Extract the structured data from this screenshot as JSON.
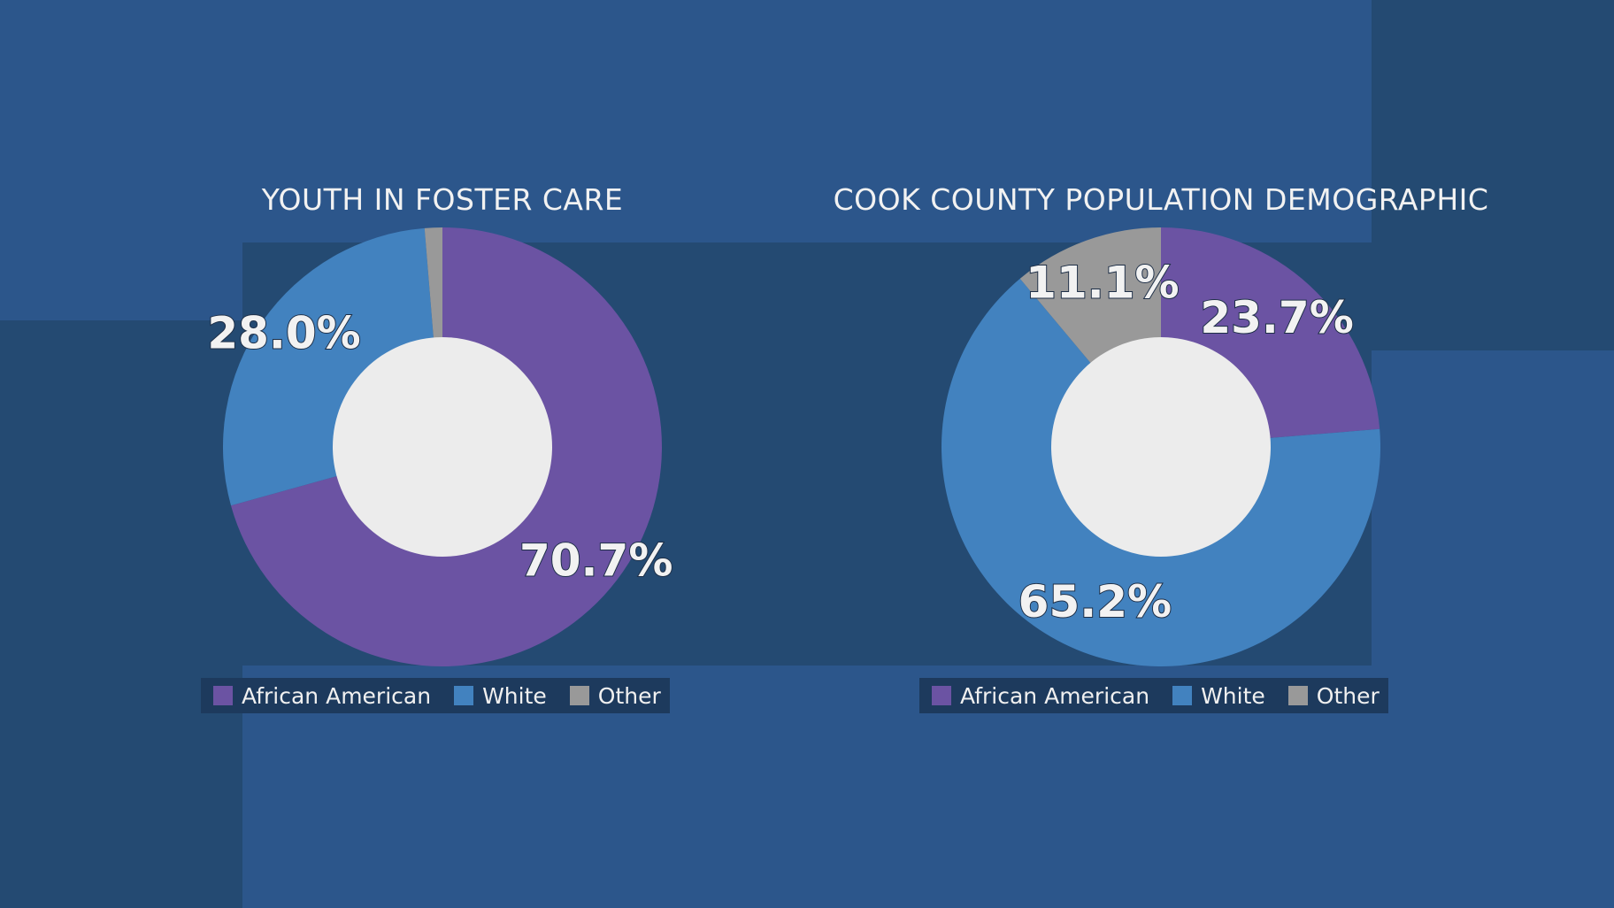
{
  "colors": {
    "african_american": "#6b53a3",
    "white": "#4282bf",
    "other": "#999999",
    "hole": "#ececec"
  },
  "legend": [
    "African American",
    "White",
    "Other"
  ],
  "chart_data": [
    {
      "type": "pie",
      "title": "YOUTH IN FOSTER CARE",
      "categories": [
        "African American",
        "White",
        "Other"
      ],
      "values": [
        70.7,
        28.0,
        1.3
      ],
      "labels": [
        "70.7%",
        "28.0%",
        ""
      ],
      "donut": true,
      "legend_position": "bottom"
    },
    {
      "type": "pie",
      "title": "COOK COUNTY POPULATION DEMOGRAPHIC",
      "categories": [
        "African American",
        "White",
        "Other"
      ],
      "values": [
        23.7,
        65.2,
        11.1
      ],
      "labels": [
        "23.7%",
        "65.2%",
        "11.1%"
      ],
      "donut": true,
      "legend_position": "bottom"
    }
  ]
}
